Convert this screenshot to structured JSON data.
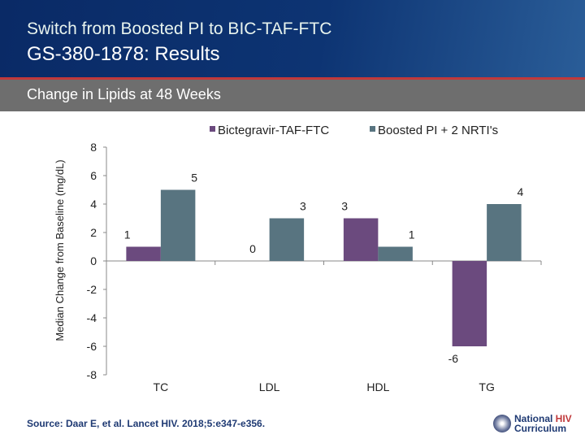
{
  "header": {
    "title": "Switch from Boosted PI to BIC-TAF-FTC",
    "subtitle": "GS-380-1878: Results",
    "section": "Change in Lipids at 48 Weeks"
  },
  "source": "Source: Daar E, et al. Lancet HIV. 2018;5:e347-e356.",
  "logo": {
    "line1a": "National ",
    "line1b": "HIV",
    "line2": "Curriculum"
  },
  "chart_data": {
    "type": "bar",
    "categories": [
      "TC",
      "LDL",
      "HDL",
      "TG"
    ],
    "series": [
      {
        "name": "Bictegravir-TAF-FTC",
        "values": [
          1,
          0,
          3,
          -6
        ],
        "color": "#6b4a7e",
        "labels": [
          "1",
          "",
          "3",
          "-6"
        ]
      },
      {
        "name": "Boosted PI + 2 NRTI's",
        "values": [
          5,
          3,
          1,
          4
        ],
        "color": "#587480",
        "labels": [
          "5",
          "3",
          "1",
          "4"
        ]
      }
    ],
    "zero_label": "0",
    "ylabel": "Median Change from Baseline (mg/dL)",
    "ylim": [
      -8,
      8
    ],
    "yticks": [
      8,
      6,
      4,
      2,
      0,
      -2,
      -4,
      -6,
      -8
    ],
    "ytick_labels": [
      "8",
      "6",
      "4",
      "2",
      "0",
      "-2",
      "-4",
      "-6",
      "-8"
    ],
    "legend": "top-right",
    "grid": false
  }
}
